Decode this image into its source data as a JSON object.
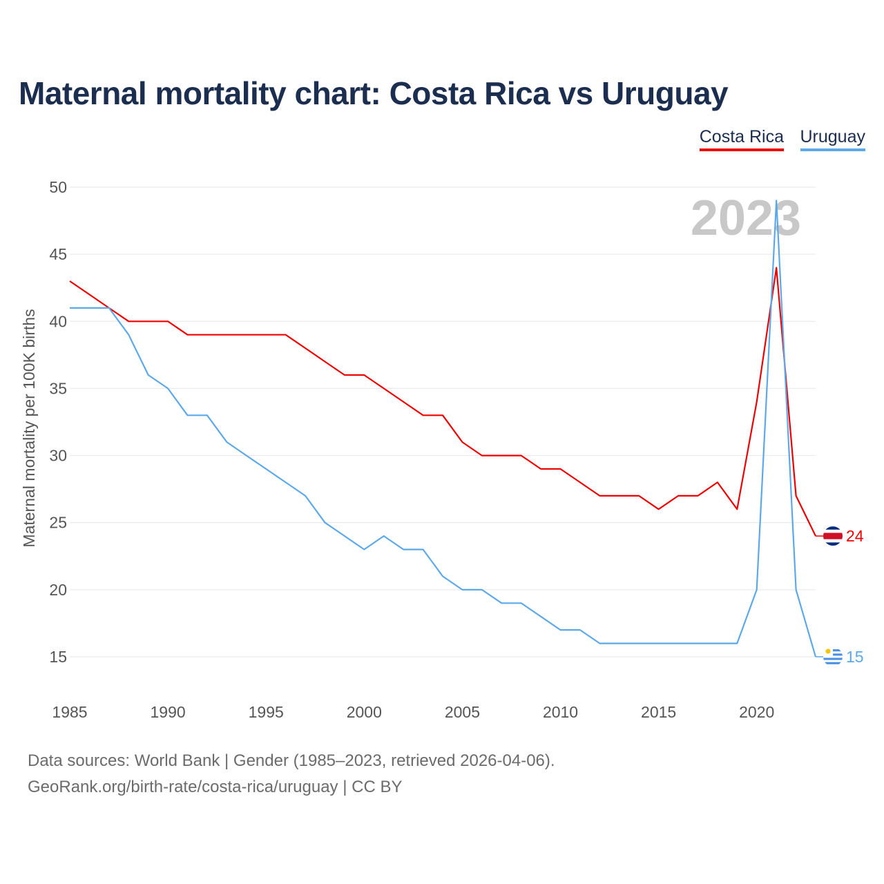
{
  "title": "Maternal mortality chart: Costa Rica vs Uruguay",
  "legend": [
    {
      "name": "Costa Rica",
      "color": "#ee0000"
    },
    {
      "name": "Uruguay",
      "color": "#5ca8e8"
    }
  ],
  "source": {
    "line1": "Data sources: World Bank | Gender (1985–2023, retrieved 2026-04-06).",
    "line2": "GeoRank.org/birth-rate/costa-rica/uruguay | CC BY"
  },
  "chart_data": {
    "type": "line",
    "title": "Maternal mortality chart: Costa Rica vs Uruguay",
    "xlabel": "",
    "ylabel": "Maternal mortality per 100K births",
    "year_label": "2023",
    "xlim": [
      1985,
      2023
    ],
    "ylim": [
      15,
      50
    ],
    "xticks": [
      1985,
      1990,
      1995,
      2000,
      2005,
      2010,
      2015,
      2020
    ],
    "yticks": [
      15,
      20,
      25,
      30,
      35,
      40,
      45,
      50
    ],
    "grid": true,
    "legend_position": "top-right",
    "x": [
      1985,
      1986,
      1987,
      1988,
      1989,
      1990,
      1991,
      1992,
      1993,
      1994,
      1995,
      1996,
      1997,
      1998,
      1999,
      2000,
      2001,
      2002,
      2003,
      2004,
      2005,
      2006,
      2007,
      2008,
      2009,
      2010,
      2011,
      2012,
      2013,
      2014,
      2015,
      2016,
      2017,
      2018,
      2019,
      2020,
      2021,
      2022,
      2023
    ],
    "series": [
      {
        "name": "Costa Rica",
        "color": "#ee0000",
        "end_label": "24",
        "values": [
          43,
          42,
          41,
          40,
          40,
          40,
          39,
          39,
          39,
          39,
          39,
          39,
          38,
          37,
          36,
          36,
          35,
          34,
          33,
          33,
          31,
          30,
          30,
          30,
          29,
          29,
          28,
          27,
          27,
          27,
          26,
          27,
          27,
          28,
          26,
          34,
          44,
          27,
          24
        ]
      },
      {
        "name": "Uruguay",
        "color": "#5ca8e8",
        "end_label": "15",
        "values": [
          41,
          41,
          41,
          39,
          36,
          35,
          33,
          33,
          31,
          30,
          29,
          28,
          27,
          25,
          24,
          23,
          24,
          23,
          23,
          21,
          20,
          20,
          19,
          19,
          18,
          17,
          17,
          16,
          16,
          16,
          16,
          16,
          16,
          16,
          16,
          20,
          49,
          20,
          15
        ]
      }
    ]
  }
}
